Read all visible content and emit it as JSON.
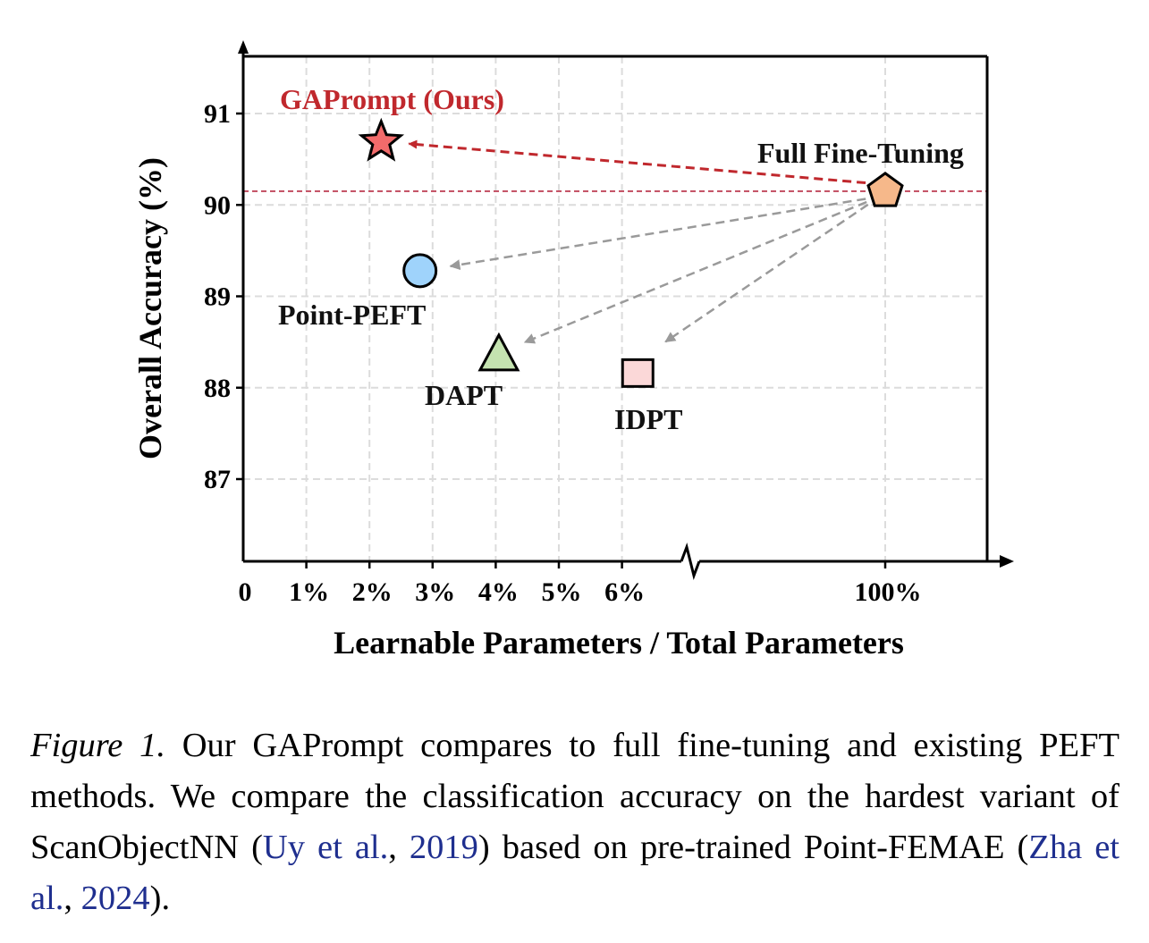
{
  "chart_data": {
    "type": "scatter",
    "xlabel": "Learnable Parameters / Total Parameters",
    "ylabel": "Overall Accuracy (%)",
    "y_ticks": [
      87,
      88,
      89,
      90,
      91
    ],
    "ylim": [
      86.1,
      91.6
    ],
    "x_ticks": [
      "0",
      "1%",
      "2%",
      "3%",
      "4%",
      "5%",
      "6%",
      "100%"
    ],
    "x_axis_break": "between 6% and 100%",
    "grid": true,
    "reference_line": {
      "y": 90.15,
      "color": "#c0485c"
    },
    "points": [
      {
        "label": "GAPrompt (Ours)",
        "x": 2.2,
        "y": 90.65,
        "marker": "star",
        "color": "#f26b6b",
        "label_color": "#c0282d"
      },
      {
        "label": "Full Fine-Tuning",
        "x": 100,
        "y": 90.15,
        "marker": "pentagon",
        "color": "#f6b88a",
        "label_color": "#111111"
      },
      {
        "label": "Point-PEFT",
        "x": 2.8,
        "y": 89.28,
        "marker": "circle",
        "color": "#9fd3fb",
        "label_color": "#111111"
      },
      {
        "label": "DAPT",
        "x": 4.05,
        "y": 88.38,
        "marker": "triangle",
        "color": "#c4e3b0",
        "label_color": "#111111"
      },
      {
        "label": "IDPT",
        "x": 6.25,
        "y": 88.17,
        "marker": "square",
        "color": "#fbd8d8",
        "label_color": "#111111"
      }
    ],
    "arrows": [
      {
        "from": "Full Fine-Tuning",
        "to": "GAPrompt (Ours)",
        "color": "#c0282d"
      },
      {
        "from": "Full Fine-Tuning",
        "to": "Point-PEFT",
        "color": "#9a9a9a"
      },
      {
        "from": "Full Fine-Tuning",
        "to": "DAPT",
        "color": "#9a9a9a"
      },
      {
        "from": "Full Fine-Tuning",
        "to": "IDPT",
        "color": "#9a9a9a"
      }
    ]
  },
  "caption": {
    "figure_label": "Figure 1.",
    "text_1": " Our GAPrompt compares to full fine-tuning and existing PEFT methods.  We compare the classification accuracy on the hardest variant of ScanObjectNN (",
    "cite_1a": "Uy et al.",
    "sep_1": ", ",
    "cite_1b": "2019",
    "text_2": ") based on pre-trained Point-FEMAE (",
    "cite_2a": "Zha et al.",
    "sep_2": ", ",
    "cite_2b": "2024",
    "text_3": ")."
  }
}
